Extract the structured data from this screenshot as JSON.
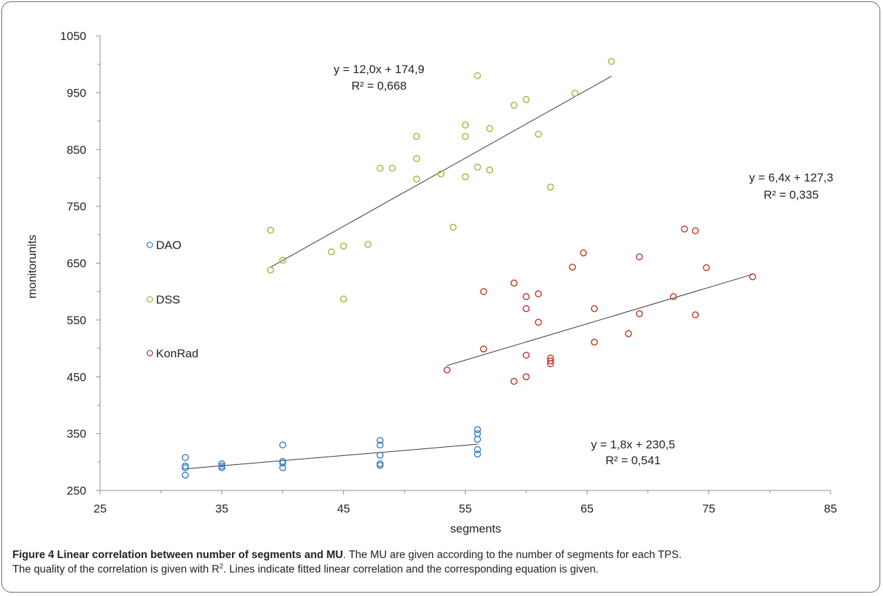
{
  "chart_data": {
    "type": "scatter",
    "xlabel": "segments",
    "ylabel": "monitorunits",
    "xlim": [
      25,
      85
    ],
    "ylim": [
      250,
      1050
    ],
    "xticks": [
      25,
      35,
      45,
      55,
      65,
      75,
      85
    ],
    "yticks": [
      250,
      350,
      450,
      550,
      650,
      750,
      850,
      950,
      1050
    ],
    "grid": false,
    "legend_position": "left",
    "series": [
      {
        "name": "DAO",
        "color": "#3a7fc4",
        "points": [
          [
            32,
            308
          ],
          [
            32,
            293
          ],
          [
            32,
            290
          ],
          [
            32,
            277
          ],
          [
            35,
            297
          ],
          [
            35,
            293
          ],
          [
            35,
            290
          ],
          [
            40,
            330
          ],
          [
            40,
            301
          ],
          [
            40,
            298
          ],
          [
            40,
            290
          ],
          [
            48,
            338
          ],
          [
            48,
            330
          ],
          [
            48,
            312
          ],
          [
            48,
            297
          ],
          [
            48,
            294
          ],
          [
            56,
            357
          ],
          [
            56,
            350
          ],
          [
            56,
            340
          ],
          [
            56,
            322
          ],
          [
            56,
            314
          ]
        ],
        "fit": {
          "x": [
            32,
            56
          ],
          "equation": "y = 1,8x + 230,5",
          "r2": "R² = 0,541"
        }
      },
      {
        "name": "DSS",
        "color": "#9bbb3b",
        "points": [
          [
            39,
            708
          ],
          [
            39,
            638
          ],
          [
            40,
            655
          ],
          [
            44,
            670
          ],
          [
            45,
            680
          ],
          [
            45,
            587
          ],
          [
            47,
            683
          ],
          [
            48,
            817
          ],
          [
            49,
            817
          ],
          [
            51,
            873
          ],
          [
            51,
            834
          ],
          [
            51,
            798
          ],
          [
            53,
            807
          ],
          [
            54,
            713
          ],
          [
            55,
            893
          ],
          [
            55,
            873
          ],
          [
            55,
            802
          ],
          [
            56,
            980
          ],
          [
            56,
            819
          ],
          [
            57,
            887
          ],
          [
            57,
            814
          ],
          [
            59,
            928
          ],
          [
            60,
            938
          ],
          [
            61,
            877
          ],
          [
            62,
            784
          ],
          [
            64,
            949
          ],
          [
            67,
            1005
          ]
        ],
        "fit": {
          "x": [
            39,
            67
          ],
          "equation": "y = 12,0x + 174,9",
          "r2": "R² = 0,668"
        }
      },
      {
        "name": "KonRad",
        "color": "#c0392b",
        "points": [
          [
            53.5,
            462
          ],
          [
            56.5,
            600
          ],
          [
            56.5,
            499
          ],
          [
            59,
            615
          ],
          [
            59,
            442
          ],
          [
            60,
            591
          ],
          [
            60,
            570
          ],
          [
            60,
            488
          ],
          [
            60,
            450
          ],
          [
            61,
            596
          ],
          [
            61,
            546
          ],
          [
            62,
            483
          ],
          [
            62,
            478
          ],
          [
            62,
            473
          ],
          [
            63.8,
            643
          ],
          [
            64.7,
            668
          ],
          [
            65.6,
            570
          ],
          [
            65.6,
            511
          ],
          [
            68.4,
            526
          ],
          [
            69.3,
            661
          ],
          [
            69.3,
            561
          ],
          [
            72.1,
            591
          ],
          [
            73,
            710
          ],
          [
            73.9,
            707
          ],
          [
            73.9,
            559
          ],
          [
            74.8,
            642
          ],
          [
            78.6,
            626
          ]
        ],
        "fit": {
          "x": [
            53.5,
            78.6
          ],
          "equation": "y = 6,4x + 127,3",
          "r2": "R² = 0,335"
        }
      }
    ]
  },
  "caption": {
    "bold": "Figure 4 Linear correlation between number of segments and MU",
    "text1": ". The MU are given according to the number of segments for each TPS.",
    "text2a": "The quality of the correlation is given with R",
    "sup": "2",
    "text2b": ". Lines indicate fitted linear correlation and the corresponding equation is given."
  }
}
